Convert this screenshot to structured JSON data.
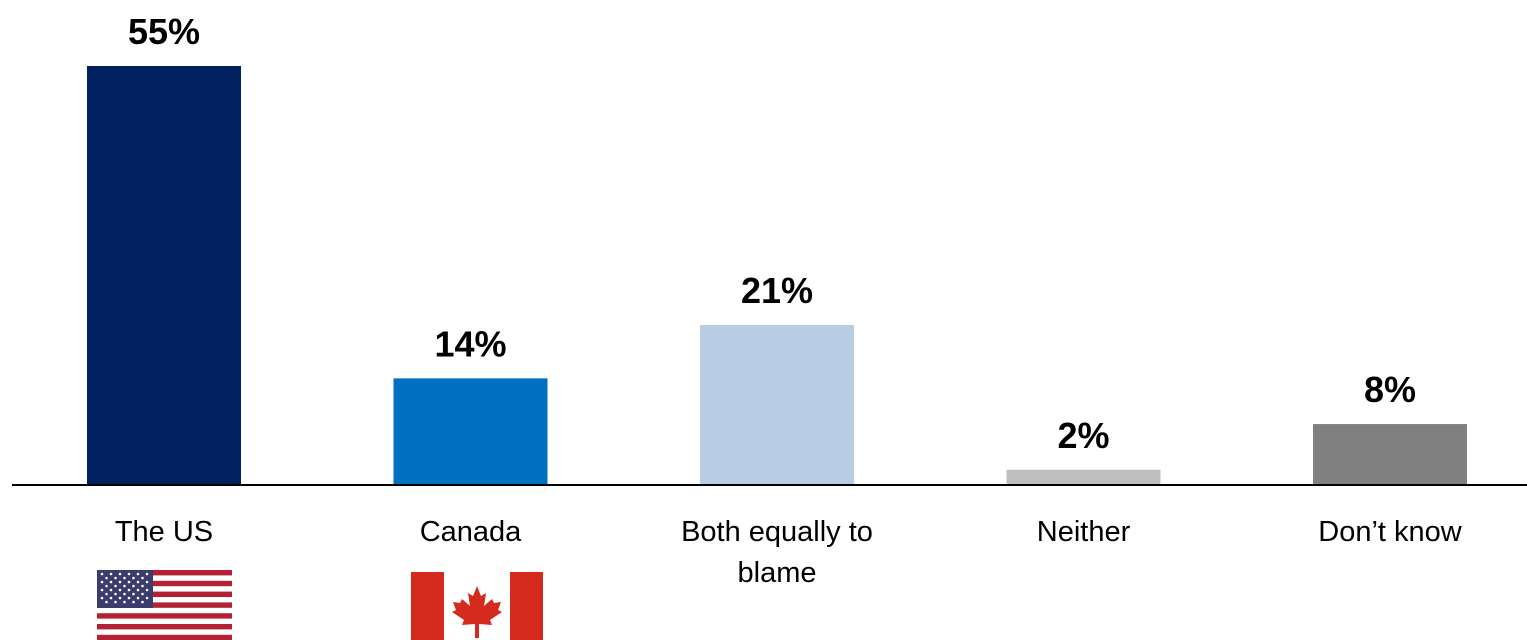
{
  "chart_data": {
    "type": "bar",
    "categories": [
      "The US",
      "Canada",
      "Both equally to blame",
      "Neither",
      "Don’t know"
    ],
    "category_lines": [
      [
        "The US"
      ],
      [
        "Canada"
      ],
      [
        "Both equally to",
        "blame"
      ],
      [
        "Neither"
      ],
      [
        "Don’t know"
      ]
    ],
    "values": [
      55,
      14,
      21,
      2,
      8
    ],
    "value_labels": [
      "55%",
      "14%",
      "21%",
      "2%",
      "8%"
    ],
    "colors": [
      "#002060",
      "#0070C0",
      "#B8CCE4",
      "#BFBFBF",
      "#808080"
    ],
    "category_icons": [
      "us-flag-icon",
      "canada-flag-icon",
      "",
      "",
      ""
    ],
    "title": "",
    "xlabel": "",
    "ylabel": "",
    "ylim": [
      0,
      55
    ],
    "grid": false,
    "legend": "none"
  }
}
